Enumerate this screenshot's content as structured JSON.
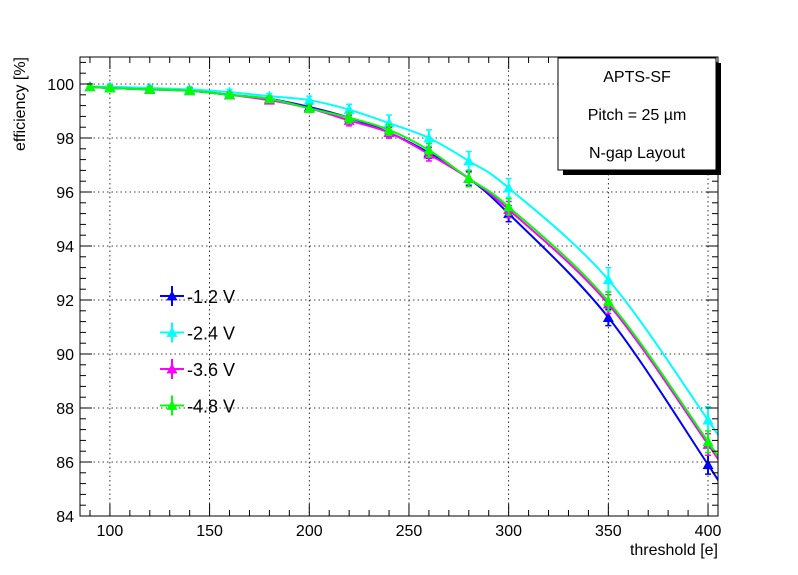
{
  "chart_data": {
    "type": "line",
    "xlabel": "threshold [e]",
    "ylabel": "efficiency [%]",
    "xlim": [
      85,
      405
    ],
    "ylim": [
      84,
      101
    ],
    "xticks": [
      100,
      150,
      200,
      250,
      300,
      350,
      400
    ],
    "yticks": [
      84,
      86,
      88,
      90,
      92,
      94,
      96,
      98,
      100
    ],
    "grid": true,
    "legend_position": "left-middle",
    "annotation": {
      "title": "APTS-SF",
      "line2_prefix": "Pitch = 25 ",
      "line2_unit": "µm",
      "line3": "N-gap Layout"
    },
    "x": [
      90,
      100,
      120,
      140,
      160,
      180,
      200,
      220,
      240,
      260,
      280,
      300,
      350,
      400
    ],
    "series": [
      {
        "name": "-1.2 V",
        "color": "#0000ff",
        "values": [
          99.9,
          99.85,
          99.8,
          99.75,
          99.6,
          99.45,
          99.15,
          98.75,
          98.2,
          97.45,
          96.5,
          95.2,
          91.35,
          85.9
        ],
        "errors": [
          0.1,
          0.1,
          0.1,
          0.1,
          0.1,
          0.1,
          0.15,
          0.2,
          0.2,
          0.2,
          0.25,
          0.3,
          0.3,
          0.35
        ]
      },
      {
        "name": "-2.4 V",
        "color": "#00ffff",
        "values": [
          99.9,
          99.9,
          99.85,
          99.8,
          99.7,
          99.55,
          99.4,
          99.05,
          98.55,
          98.0,
          97.15,
          96.15,
          92.75,
          87.55
        ],
        "errors": [
          0.1,
          0.1,
          0.1,
          0.1,
          0.1,
          0.1,
          0.15,
          0.2,
          0.3,
          0.3,
          0.35,
          0.35,
          0.45,
          0.5
        ]
      },
      {
        "name": "-3.6 V",
        "color": "#ff00ff",
        "values": [
          99.9,
          99.85,
          99.8,
          99.75,
          99.6,
          99.4,
          99.1,
          98.65,
          98.2,
          97.4,
          96.5,
          95.35,
          91.85,
          86.65
        ],
        "errors": [
          0.1,
          0.1,
          0.1,
          0.1,
          0.1,
          0.1,
          0.15,
          0.2,
          0.2,
          0.25,
          0.3,
          0.3,
          0.35,
          0.4
        ]
      },
      {
        "name": "-4.8 V",
        "color": "#00ff00",
        "values": [
          99.9,
          99.85,
          99.8,
          99.75,
          99.6,
          99.45,
          99.1,
          98.75,
          98.3,
          97.55,
          96.5,
          95.45,
          91.95,
          86.75
        ],
        "errors": [
          0.1,
          0.1,
          0.1,
          0.1,
          0.1,
          0.1,
          0.15,
          0.2,
          0.2,
          0.25,
          0.3,
          0.3,
          0.35,
          0.4
        ]
      }
    ]
  }
}
